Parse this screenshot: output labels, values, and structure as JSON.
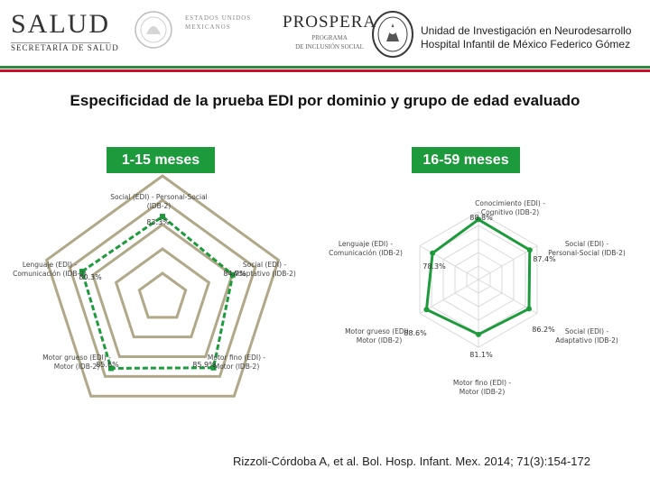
{
  "header": {
    "salud_word": "SALUD",
    "salud_sub": "SECRETARÍA DE SALUD",
    "gob_text": "ESTADOS UNIDOS MEXICANOS",
    "prospera_word": "PROSPERA",
    "prospera_sub_1": "PROGRAMA",
    "prospera_sub_2": "DE INCLUSIÓN SOCIAL",
    "institution_line1": "Unidad de Investigación en Neurodesarrollo",
    "institution_line2": "Hospital Infantil de México Federico Gómez"
  },
  "title": "Especificidad de la prueba EDI por dominio y grupo de edad evaluado",
  "colors": {
    "green": "#1d9a3c",
    "olive": "#b0a888",
    "grid_light": "#d9d9d9",
    "red": "#c8102e"
  },
  "chart_data": [
    {
      "type": "radar",
      "title": "1-15 meses",
      "axes": [
        "Social (EDI) - Personal-Social (IDB-2)",
        "Lenguaje (EDI) - Comunicación (IDB-2)",
        "Motor grueso (EDI) - Motor (IDB-2)",
        "Motor fino (EDI) - Motor (IDB-2)",
        "Social (EDI) - Adaptativo (IDB-2)"
      ],
      "value_labels": [
        "83.3%",
        "80.3%",
        "85.6%",
        "85.9%",
        "84.7%"
      ],
      "values": [
        83.3,
        80.3,
        85.6,
        85.9,
        84.7
      ],
      "range": [
        50,
        100
      ],
      "grid_levels": 5
    },
    {
      "type": "radar",
      "title": "16-59 meses",
      "axes": [
        "Conocimiento (EDI) - Cognitivo (IDB-2)",
        "Social (EDI) - Personal-Social (IDB-2)",
        "Social (EDI) - Adaptativo (IDB-2)",
        "Motor fino (EDI) - Motor (IDB-2)",
        "Motor grueso (EDI) - Motor (IDB-2)",
        "Lenguaje (EDI) - Comunicación (IDB-2)"
      ],
      "value_labels": [
        "88.8%",
        "87.4%",
        "86.2%",
        "81.1%",
        "88.6%",
        "78.3%"
      ],
      "values": [
        88.8,
        87.4,
        86.2,
        81.1,
        88.6,
        78.3
      ],
      "range": [
        0,
        100
      ],
      "grid_levels": 5
    }
  ],
  "citation": "Rizzoli-Córdoba A, et al. Bol. Hosp. Infant. Mex. 2014; 71(3):154-172"
}
